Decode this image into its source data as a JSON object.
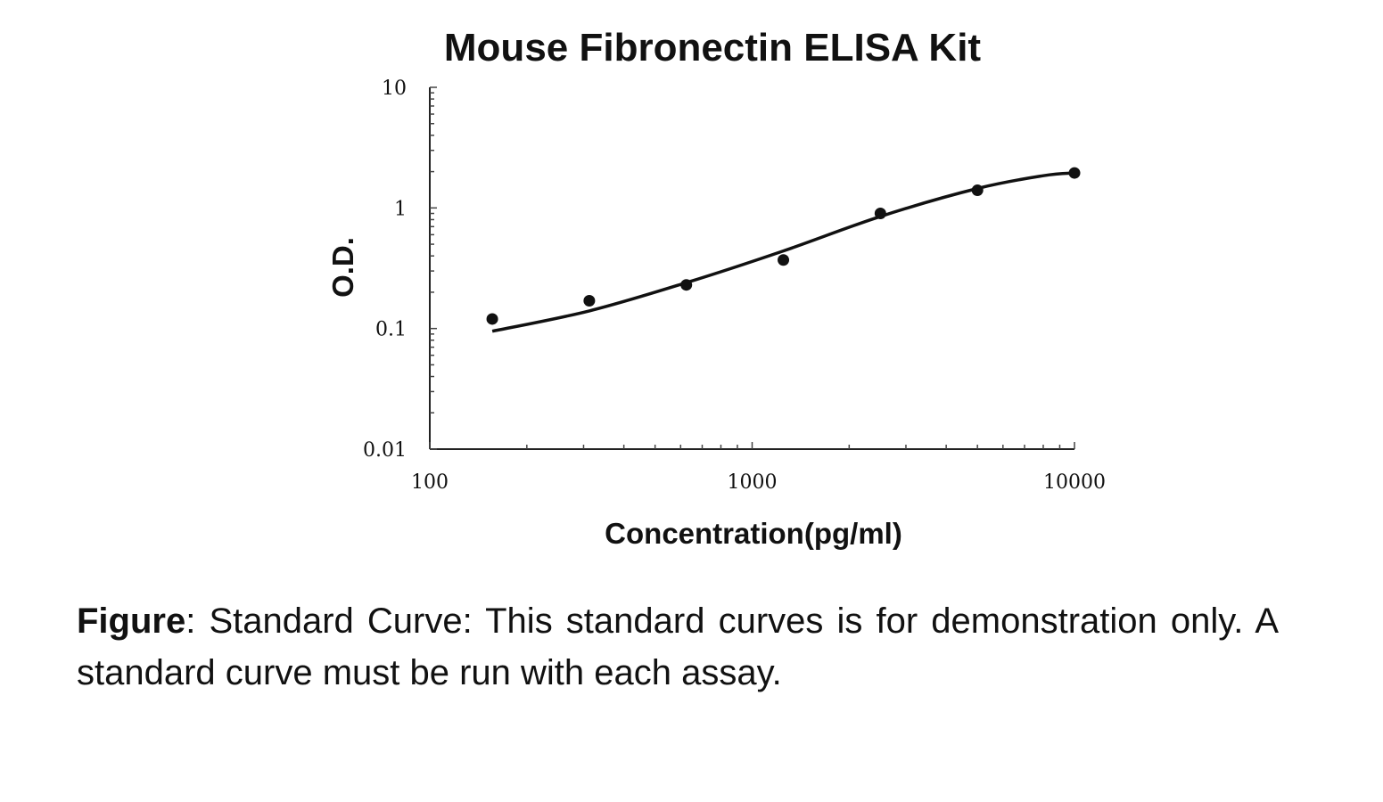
{
  "chart_data": {
    "type": "scatter",
    "title": "Mouse Fibronectin ELISA Kit",
    "xlabel": "Concentration(pg/ml)",
    "ylabel": "O.D.",
    "xscale": "log",
    "yscale": "log",
    "xlim": [
      100,
      10000
    ],
    "ylim": [
      0.01,
      10
    ],
    "x_ticks": [
      "100",
      "1000",
      "10000"
    ],
    "y_ticks": [
      "10",
      "1",
      "0.1",
      "0.01"
    ],
    "grid": false,
    "legend": "none",
    "series": [
      {
        "marker": "circle",
        "x": [
          156.25,
          312.5,
          625,
          1250,
          2500,
          5000,
          10000
        ],
        "y": [
          0.12,
          0.17,
          0.23,
          0.37,
          0.9,
          1.4,
          1.95
        ]
      }
    ],
    "fit_curve": {
      "x": [
        156.25,
        312.5,
        625,
        1250,
        2500,
        5000,
        8000,
        10000
      ],
      "y": [
        0.095,
        0.14,
        0.24,
        0.44,
        0.85,
        1.45,
        1.85,
        1.95
      ]
    }
  },
  "caption": {
    "label": "Figure",
    "text": ":  Standard Curve: This standard curves is for demonstration only. A standard curve must be run with each assay."
  }
}
